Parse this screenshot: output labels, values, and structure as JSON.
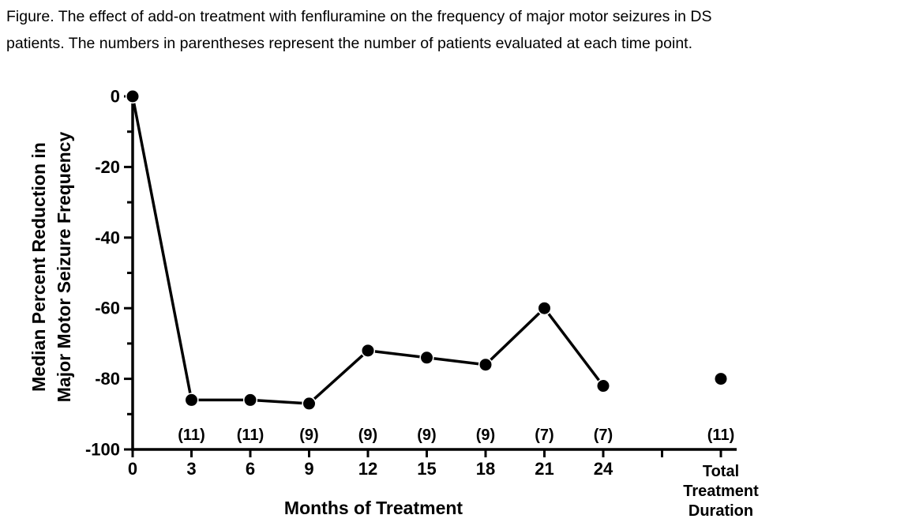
{
  "caption": {
    "line1": "Figure. The effect of add-on treatment with fenfluramine on the frequency of major motor seizures in DS",
    "line2": "patients. The numbers in parentheses represent the number of patients evaluated at each time point."
  },
  "chart_data": {
    "type": "line",
    "title": "",
    "xlabel": "Months of Treatment",
    "ylabel_lines": [
      "Median Percent Reduction in",
      "Major Motor Seizure Frequency"
    ],
    "ylim": [
      -100,
      0
    ],
    "grid": false,
    "legend": "none",
    "ytick_values": [
      0,
      -20,
      -40,
      -60,
      -80,
      -100
    ],
    "ytick_labels": [
      "0",
      "-20",
      "-40",
      "-60",
      "-80",
      "-100"
    ],
    "ytick_minor_values": [
      -10,
      -30,
      -50,
      -70,
      -90
    ],
    "series": [
      {
        "name": "Months of treatment",
        "connected": true,
        "points": [
          {
            "x": 0,
            "x_label": "0",
            "value": 0,
            "count_label": ""
          },
          {
            "x": 3,
            "x_label": "3",
            "value": -86,
            "count_label": "(11)"
          },
          {
            "x": 6,
            "x_label": "6",
            "value": -86,
            "count_label": "(11)"
          },
          {
            "x": 9,
            "x_label": "9",
            "value": -87,
            "count_label": "(9)"
          },
          {
            "x": 12,
            "x_label": "12",
            "value": -72,
            "count_label": "(9)"
          },
          {
            "x": 15,
            "x_label": "15",
            "value": -74,
            "count_label": "(9)"
          },
          {
            "x": 18,
            "x_label": "18",
            "value": -76,
            "count_label": "(9)"
          },
          {
            "x": 21,
            "x_label": "21",
            "value": -60,
            "count_label": "(7)"
          },
          {
            "x": 24,
            "x_label": "24",
            "value": -82,
            "count_label": "(7)"
          }
        ]
      },
      {
        "name": "Total Treatment Duration",
        "connected": false,
        "points": [
          {
            "x": "total",
            "x_label": "Total Treatment Duration",
            "value": -80,
            "count_label": "(11)"
          }
        ]
      }
    ],
    "colors": {
      "line": "#000000",
      "marker": "#000000",
      "marker_halo": "#ffffff",
      "axis": "#000000",
      "text": "#000000"
    }
  }
}
